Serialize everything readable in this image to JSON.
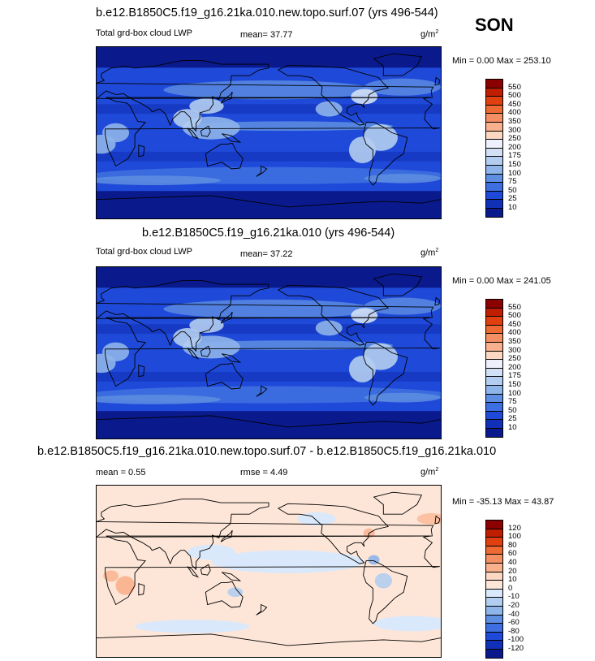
{
  "season": "SON",
  "panels": [
    {
      "id": "top",
      "title": "b.e12.B1850C5.f19_g16.21ka.010.new.topo.surf.07 (yrs 496-544)",
      "left_label": "Total grd-box cloud LWP",
      "center_label": "mean=  37.77",
      "units": "g/m",
      "units_exp": "2",
      "minmax": "Min =   0.00 Max = 253.10",
      "levels": [
        "550",
        "500",
        "450",
        "400",
        "350",
        "300",
        "250",
        "200",
        "175",
        "150",
        "100",
        "75",
        "50",
        "25",
        "10"
      ],
      "colors": [
        "#8b0000",
        "#bf1f00",
        "#e04010",
        "#ee6a34",
        "#f48f63",
        "#f9b08c",
        "#fcd7c1",
        "#eef1fb",
        "#d2e0f5",
        "#b2cdf0",
        "#8eb4ea",
        "#5e8ee2",
        "#3d6fe0",
        "#1f49d8",
        "#1030b8",
        "#0a1a8c"
      ],
      "field": "lwp"
    },
    {
      "id": "middle",
      "title": "b.e12.B1850C5.f19_g16.21ka.010 (yrs 496-544)",
      "left_label": "Total grd-box cloud LWP",
      "center_label": "mean=  37.22",
      "units": "g/m",
      "units_exp": "2",
      "minmax": "Min =   0.00 Max = 241.05",
      "levels": [
        "550",
        "500",
        "450",
        "400",
        "350",
        "300",
        "250",
        "200",
        "175",
        "150",
        "100",
        "75",
        "50",
        "25",
        "10"
      ],
      "colors": [
        "#8b0000",
        "#bf1f00",
        "#e04010",
        "#ee6a34",
        "#f48f63",
        "#f9b08c",
        "#fcd7c1",
        "#eef1fb",
        "#d2e0f5",
        "#b2cdf0",
        "#8eb4ea",
        "#5e8ee2",
        "#3d6fe0",
        "#1f49d8",
        "#1030b8",
        "#0a1a8c"
      ],
      "field": "lwp"
    },
    {
      "id": "bottom",
      "title": "b.e12.B1850C5.f19_g16.21ka.010.new.topo.surf.07 - b.e12.B1850C5.f19_g16.21ka.010",
      "left_label": "mean =   0.55",
      "center_label": "rmse =   4.49",
      "units": "g/m",
      "units_exp": "2",
      "minmax": "Min = -35.13 Max =  43.87",
      "levels": [
        "120",
        "100",
        "80",
        "60",
        "40",
        "20",
        "10",
        "0",
        "-10",
        "-20",
        "-40",
        "-60",
        "-80",
        "-100",
        "-120"
      ],
      "colors": [
        "#8b0000",
        "#bf1f00",
        "#e04010",
        "#ee6a34",
        "#f48f63",
        "#f9b08c",
        "#fcd7c1",
        "#fde6d8",
        "#d9e8fb",
        "#b2cdf0",
        "#8eb4ea",
        "#5e8ee2",
        "#3d6fe0",
        "#1f49d8",
        "#1030b8",
        "#0a1a8c"
      ],
      "field": "diff"
    }
  ],
  "chart_data": {
    "type": "heatmap",
    "panels": [
      {
        "title": "b.e12.B1850C5.f19_g16.21ka.010.new.topo.surf.07 (yrs 496-544)",
        "variable": "Total grd-box cloud LWP",
        "mean": 37.77,
        "min": 0.0,
        "max": 253.1,
        "units": "g/m2",
        "contour_levels": [
          10,
          25,
          50,
          75,
          100,
          150,
          175,
          200,
          250,
          300,
          350,
          400,
          450,
          500,
          550
        ]
      },
      {
        "title": "b.e12.B1850C5.f19_g16.21ka.010 (yrs 496-544)",
        "variable": "Total grd-box cloud LWP",
        "mean": 37.22,
        "min": 0.0,
        "max": 241.05,
        "units": "g/m2",
        "contour_levels": [
          10,
          25,
          50,
          75,
          100,
          150,
          175,
          200,
          250,
          300,
          350,
          400,
          450,
          500,
          550
        ]
      },
      {
        "title": "b.e12.B1850C5.f19_g16.21ka.010.new.topo.surf.07 - b.e12.B1850C5.f19_g16.21ka.010",
        "mean": 0.55,
        "rmse": 4.49,
        "min": -35.13,
        "max": 43.87,
        "units": "g/m2",
        "contour_levels": [
          -120,
          -100,
          -80,
          -60,
          -40,
          -20,
          -10,
          0,
          10,
          20,
          40,
          60,
          80,
          100,
          120
        ]
      }
    ]
  }
}
